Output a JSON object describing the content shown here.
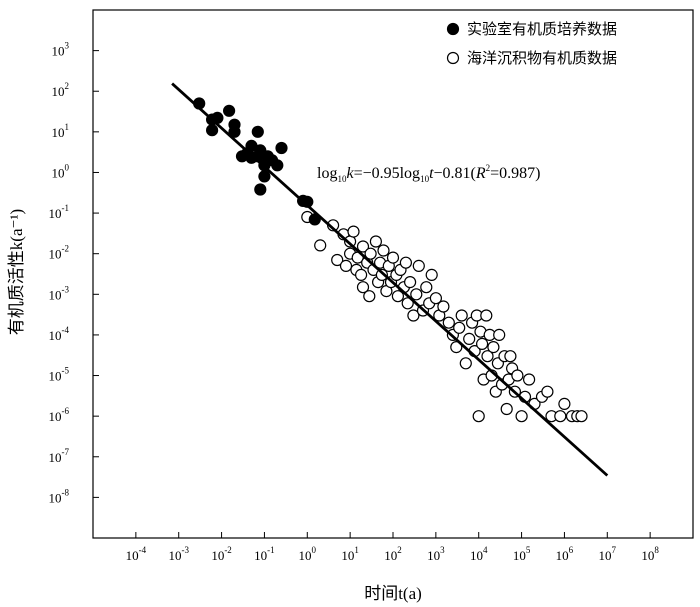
{
  "chart_data": {
    "type": "scatter",
    "xlabel": "时间t(a)",
    "ylabel": "有机质活性k(a⁻¹)",
    "x_scale": "log",
    "y_scale": "log",
    "xlim": [
      1e-05,
      1000000000
    ],
    "ylim": [
      1e-09,
      10000
    ],
    "x_ticks": [
      0.0001,
      0.001,
      0.01,
      0.1,
      1,
      10,
      100,
      1000,
      10000,
      100000,
      1000000,
      10000000,
      100000000
    ],
    "x_tick_labels": [
      {
        "base": "10",
        "exp": "-4"
      },
      {
        "base": "10",
        "exp": "-3"
      },
      {
        "base": "10",
        "exp": "-2"
      },
      {
        "base": "10",
        "exp": "-1"
      },
      {
        "base": "10",
        "exp": "0"
      },
      {
        "base": "10",
        "exp": "1"
      },
      {
        "base": "10",
        "exp": "2"
      },
      {
        "base": "10",
        "exp": "3"
      },
      {
        "base": "10",
        "exp": "4"
      },
      {
        "base": "10",
        "exp": "5"
      },
      {
        "base": "10",
        "exp": "6"
      },
      {
        "base": "10",
        "exp": "7"
      },
      {
        "base": "10",
        "exp": "8"
      }
    ],
    "y_ticks": [
      1e-08,
      1e-07,
      1e-06,
      1e-05,
      0.0001,
      0.001,
      0.01,
      0.1,
      1,
      10,
      100,
      1000
    ],
    "y_tick_labels": [
      {
        "base": "10",
        "exp": "-8"
      },
      {
        "base": "10",
        "exp": "-7"
      },
      {
        "base": "10",
        "exp": "-6"
      },
      {
        "base": "10",
        "exp": "-5"
      },
      {
        "base": "10",
        "exp": "-4"
      },
      {
        "base": "10",
        "exp": "-3"
      },
      {
        "base": "10",
        "exp": "-2"
      },
      {
        "base": "10",
        "exp": "-1"
      },
      {
        "base": "10",
        "exp": "0"
      },
      {
        "base": "10",
        "exp": "1"
      },
      {
        "base": "10",
        "exp": "2"
      },
      {
        "base": "10",
        "exp": "3"
      }
    ],
    "legend_position": "top-right",
    "grid": false,
    "series": [
      {
        "name": "实验室有机质培养数据",
        "marker": "filled-circle",
        "color": "#000000",
        "points": [
          [
            0.003,
            50
          ],
          [
            0.006,
            20
          ],
          [
            0.006,
            11
          ],
          [
            0.008,
            22
          ],
          [
            0.015,
            33
          ],
          [
            0.02,
            15
          ],
          [
            0.02,
            10
          ],
          [
            0.03,
            2.5
          ],
          [
            0.04,
            3
          ],
          [
            0.05,
            2.3
          ],
          [
            0.05,
            4.5
          ],
          [
            0.07,
            10
          ],
          [
            0.07,
            2.5
          ],
          [
            0.08,
            3.5
          ],
          [
            0.08,
            0.38
          ],
          [
            0.1,
            0.8
          ],
          [
            0.1,
            1.5
          ],
          [
            0.12,
            2.5
          ],
          [
            0.15,
            2
          ],
          [
            0.2,
            1.5
          ],
          [
            0.25,
            4
          ],
          [
            0.8,
            0.2
          ],
          [
            1,
            0.19
          ],
          [
            1.5,
            0.07
          ]
        ]
      },
      {
        "name": "海洋沉积物有机质数据",
        "marker": "open-circle",
        "color": "#000000",
        "points": [
          [
            1,
            0.08
          ],
          [
            2,
            0.016
          ],
          [
            4,
            0.05
          ],
          [
            5,
            0.007
          ],
          [
            7,
            0.03
          ],
          [
            8,
            0.005
          ],
          [
            10,
            0.01
          ],
          [
            10,
            0.02
          ],
          [
            12,
            0.035
          ],
          [
            14,
            0.004
          ],
          [
            15,
            0.008
          ],
          [
            18,
            0.003
          ],
          [
            20,
            0.015
          ],
          [
            20,
            0.0015
          ],
          [
            25,
            0.006
          ],
          [
            28,
            0.0009
          ],
          [
            30,
            0.01
          ],
          [
            35,
            0.004
          ],
          [
            40,
            0.02
          ],
          [
            45,
            0.002
          ],
          [
            50,
            0.006
          ],
          [
            55,
            0.003
          ],
          [
            60,
            0.012
          ],
          [
            70,
            0.0012
          ],
          [
            80,
            0.005
          ],
          [
            90,
            0.002
          ],
          [
            100,
            0.008
          ],
          [
            120,
            0.003
          ],
          [
            130,
            0.0009
          ],
          [
            150,
            0.004
          ],
          [
            180,
            0.0015
          ],
          [
            200,
            0.006
          ],
          [
            220,
            0.0006
          ],
          [
            250,
            0.002
          ],
          [
            300,
            0.0003
          ],
          [
            350,
            0.001
          ],
          [
            400,
            0.005
          ],
          [
            500,
            0.0004
          ],
          [
            600,
            0.0015
          ],
          [
            700,
            0.0006
          ],
          [
            800,
            0.003
          ],
          [
            1000,
            0.0008
          ],
          [
            1200,
            0.0003
          ],
          [
            1500,
            0.0005
          ],
          [
            2000,
            0.0002
          ],
          [
            2500,
            0.0001
          ],
          [
            3000,
            5e-05
          ],
          [
            3500,
            0.00015
          ],
          [
            4000,
            0.0003
          ],
          [
            5000,
            2e-05
          ],
          [
            6000,
            8e-05
          ],
          [
            7000,
            0.0002
          ],
          [
            8000,
            4e-05
          ],
          [
            9000,
            0.0003
          ],
          [
            10000,
            1e-06
          ],
          [
            11000,
            0.00012
          ],
          [
            12000,
            6e-05
          ],
          [
            13000,
            8e-06
          ],
          [
            15000,
            0.0003
          ],
          [
            16000,
            3e-05
          ],
          [
            18000,
            0.0001
          ],
          [
            20000,
            1e-05
          ],
          [
            22000,
            5e-05
          ],
          [
            25000,
            4e-06
          ],
          [
            28000,
            2e-05
          ],
          [
            30000,
            0.0001
          ],
          [
            35000,
            6e-06
          ],
          [
            40000,
            3e-05
          ],
          [
            45000,
            1.5e-06
          ],
          [
            50000,
            8e-06
          ],
          [
            55000,
            3e-05
          ],
          [
            60000,
            1.5e-05
          ],
          [
            70000,
            4e-06
          ],
          [
            80000,
            1e-05
          ],
          [
            100000,
            1e-06
          ],
          [
            120000,
            3e-06
          ],
          [
            150000,
            8e-06
          ],
          [
            200000,
            2e-06
          ],
          [
            300000,
            3e-06
          ],
          [
            400000,
            4e-06
          ],
          [
            500000,
            1e-06
          ],
          [
            800000,
            1e-06
          ],
          [
            1000000,
            2e-06
          ],
          [
            1500000,
            1e-06
          ],
          [
            2000000,
            1e-06
          ],
          [
            2500000,
            1e-06
          ]
        ]
      }
    ],
    "fit_line": {
      "slope": -0.95,
      "intercept": -0.81,
      "x_range": [
        0.0007,
        10000000
      ],
      "equation": {
        "lhs": "log",
        "lhs_sub": "10",
        "lhs_var": "k",
        "mid": "=−0.95log",
        "mid_sub": "10",
        "mid_var": "t",
        "tail": "−0.81(",
        "r_var": "R",
        "r_exp": "2",
        "r_value": "=0.987)"
      }
    }
  }
}
